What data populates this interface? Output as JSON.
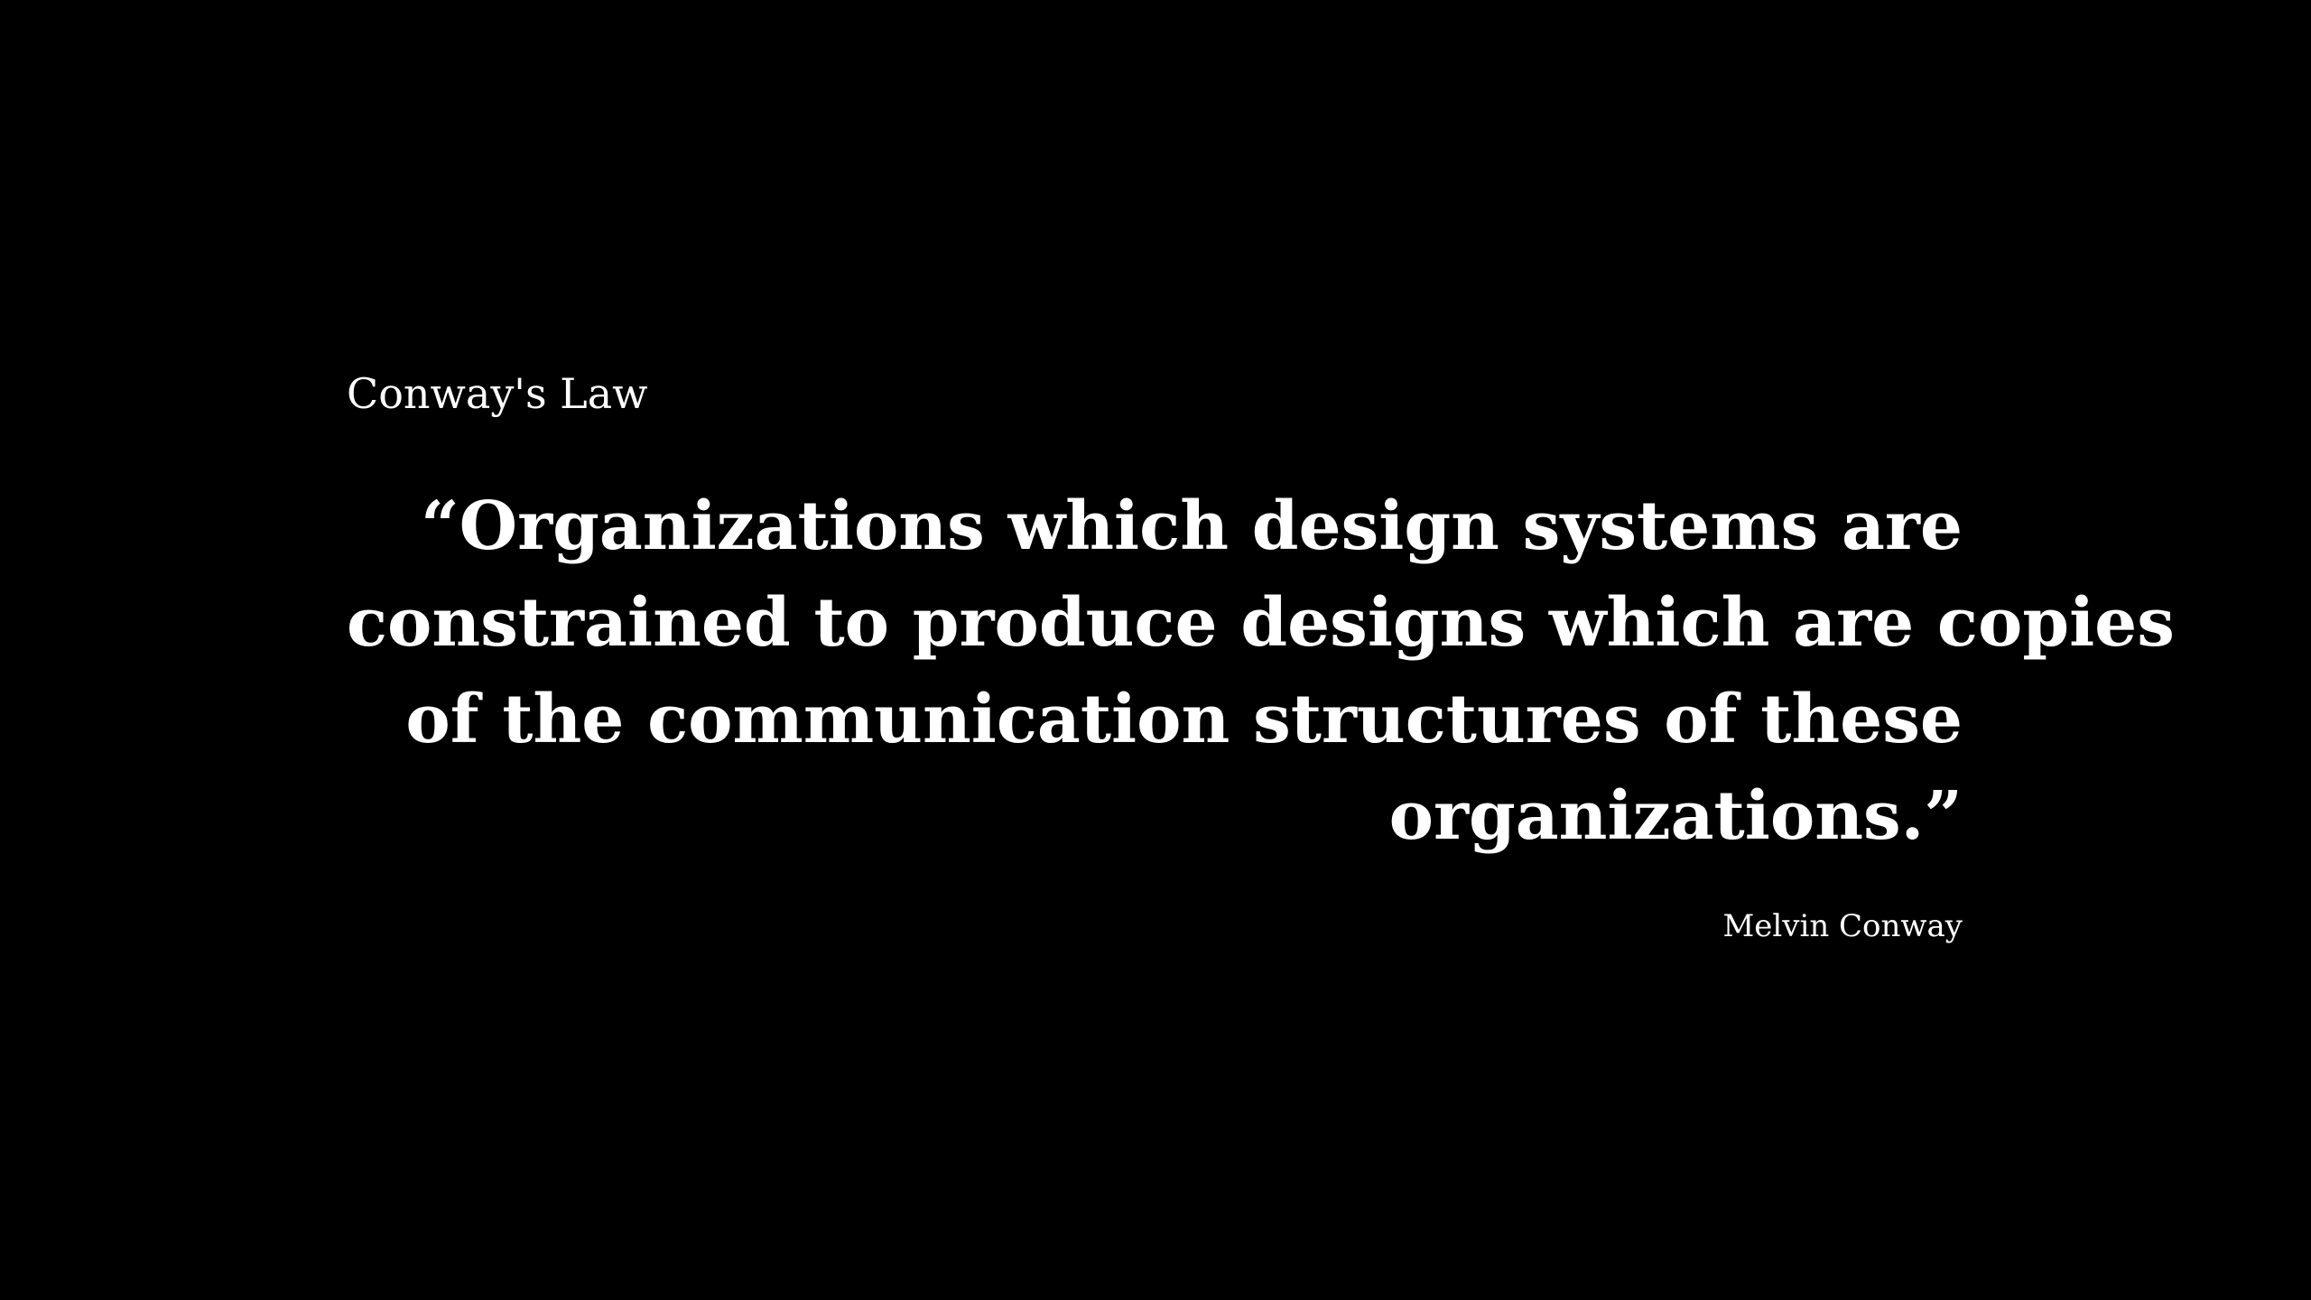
{
  "slide": {
    "title": "Conway's Law",
    "quote_lines": [
      "“Organizations which design systems are",
      "constrained to produce designs which are copies",
      "of the communication structures of these",
      "organizations.”"
    ],
    "author": "Melvin Conway"
  },
  "colors": {
    "background": "#000000",
    "text": "#ffffff"
  }
}
